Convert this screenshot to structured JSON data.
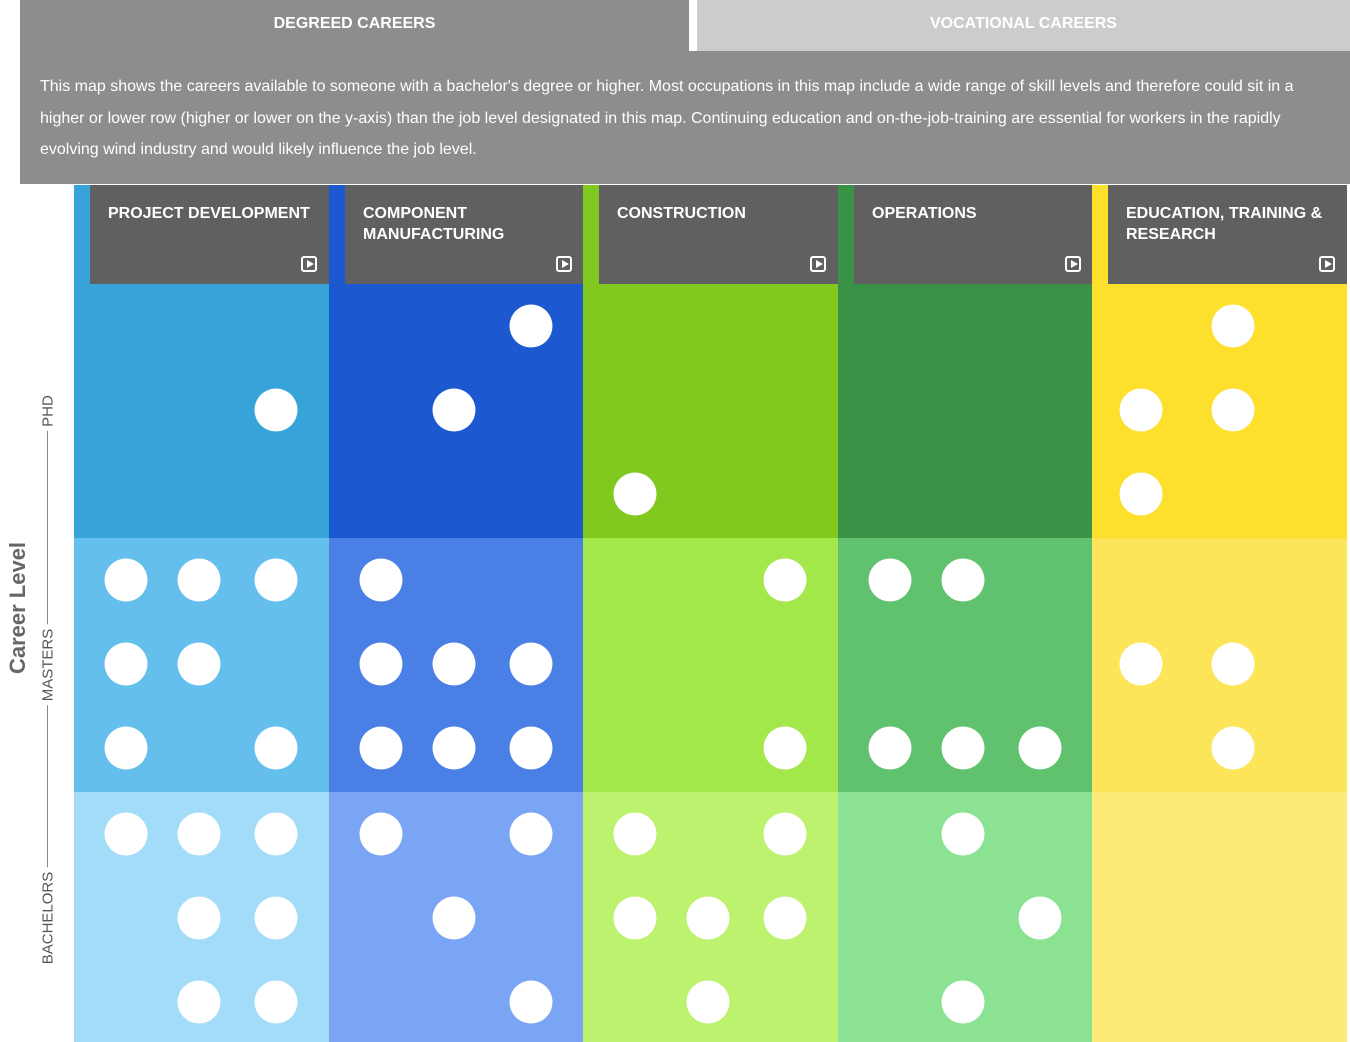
{
  "tabs": [
    {
      "label": "DEGREED CAREERS",
      "active": true
    },
    {
      "label": "VOCATIONAL CAREERS",
      "active": false
    }
  ],
  "intro": "This map shows the careers available to someone with a bachelor's degree or higher. Most occupations in this map include a wide range of skill levels and therefore could sit in a higher or lower row (higher or lower on the y-axis) than the job level designated in this map. Continuing education and on-the-job-training are essential for workers in the rapidly evolving wind industry and would likely influence the job level.",
  "axis": {
    "title": "Career Level",
    "levels": [
      "PHD",
      "MASTERS",
      "BACHELORS"
    ]
  },
  "columns": [
    {
      "title": "PROJECT DEVELOPMENT",
      "icon": "play-icon",
      "colors": [
        "#36a4d8",
        "#64bfec",
        "#a2dcf8"
      ],
      "dots": [
        [
          [],
          [
            2
          ],
          []
        ],
        [
          [
            0,
            1,
            2
          ],
          [
            0,
            1
          ],
          [
            0,
            2
          ]
        ],
        [
          [
            0,
            1,
            2
          ],
          [
            1,
            2
          ],
          [
            1,
            2
          ]
        ]
      ]
    },
    {
      "title": "COMPONENT MANUFACTURING",
      "icon": "play-icon",
      "colors": [
        "#1c58cf",
        "#4a80e6",
        "#7aa4f4"
      ],
      "dots": [
        [
          [
            2
          ],
          [
            1
          ],
          []
        ],
        [
          [
            0
          ],
          [
            0,
            1,
            2
          ],
          [
            0,
            1,
            2
          ]
        ],
        [
          [
            0,
            2
          ],
          [
            1
          ],
          [
            2
          ]
        ]
      ]
    },
    {
      "title": "CONSTRUCTION",
      "icon": "play-icon",
      "colors": [
        "#82c91f",
        "#a3e84a",
        "#bdf26f"
      ],
      "dots": [
        [
          [],
          [],
          [
            0
          ]
        ],
        [
          [
            2
          ],
          [],
          [
            2
          ]
        ],
        [
          [
            0,
            2
          ],
          [
            0,
            1,
            2
          ],
          [
            1
          ]
        ]
      ]
    },
    {
      "title": "OPERATIONS",
      "icon": "play-icon",
      "colors": [
        "#3a9247",
        "#60c26e",
        "#8be293"
      ],
      "dots": [
        [
          [],
          [],
          []
        ],
        [
          [
            0,
            1
          ],
          [],
          [
            0,
            1,
            2
          ]
        ],
        [
          [
            1
          ],
          [
            2
          ],
          [
            1
          ]
        ]
      ]
    },
    {
      "title": "EDUCATION, TRAINING & RESEARCH",
      "icon": "play-icon",
      "colors": [
        "#fde02b",
        "#fde55a",
        "#fde977"
      ],
      "dots": [
        [
          [
            1
          ],
          [
            0,
            1
          ],
          [
            0
          ]
        ],
        [
          [],
          [
            0,
            1
          ],
          [
            1
          ]
        ],
        [
          [],
          [],
          []
        ]
      ]
    }
  ]
}
